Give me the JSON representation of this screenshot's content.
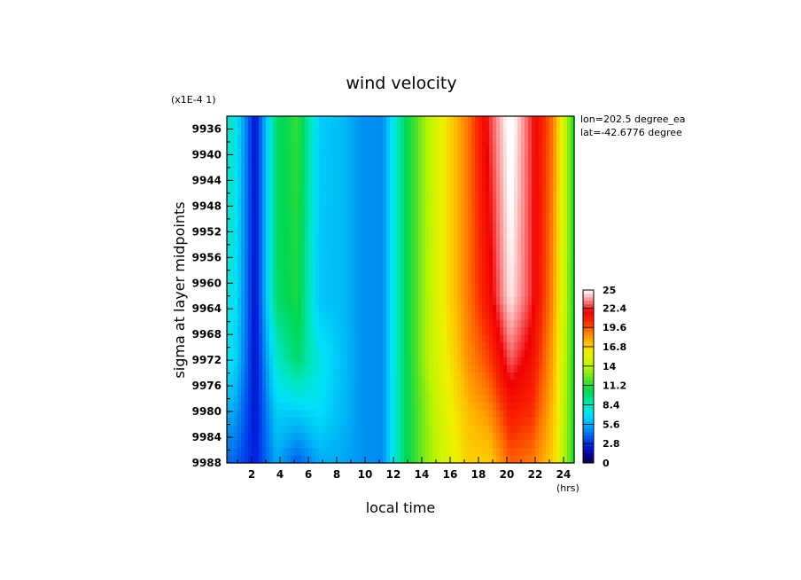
{
  "chart_data": {
    "type": "heatmap",
    "title": "wind velocity",
    "xlabel": "local time",
    "ylabel": "sigma at layer midpoints",
    "x_unit": "(hrs)",
    "y_scale_label": "(x1E-4 1)",
    "annotations": [
      "lon=202.5 degree_ea",
      "lat=-42.6776 degree"
    ],
    "xlim": [
      0.25,
      24.75
    ],
    "ylim": [
      9988,
      9934
    ],
    "x_ticks": [
      2,
      4,
      6,
      8,
      10,
      12,
      14,
      16,
      18,
      20,
      22,
      24
    ],
    "x_tick_labels": [
      "2",
      "4",
      "6",
      "8",
      "10",
      "12",
      "14",
      "16",
      "18",
      "20",
      "22",
      "24"
    ],
    "y_ticks": [
      9936,
      9940,
      9944,
      9948,
      9952,
      9956,
      9960,
      9964,
      9968,
      9972,
      9976,
      9980,
      9984,
      9988
    ],
    "y_tick_labels": [
      "9936",
      "9940",
      "9944",
      "9948",
      "9952",
      "9956",
      "9960",
      "9964",
      "9968",
      "9972",
      "9976",
      "9980",
      "9984",
      "9988"
    ],
    "x": [
      0.75,
      2.25,
      3.75,
      5.25,
      6.75,
      8.25,
      9.75,
      11.25,
      12.75,
      14.25,
      15.75,
      17.25,
      18.75,
      20.25,
      21.75,
      23.25,
      24.75
    ],
    "y": [
      9934,
      9962,
      9972,
      9980,
      9988
    ],
    "z": [
      [
        8.0,
        2.0,
        10.0,
        11.5,
        6.5,
        6.0,
        5.0,
        4.8,
        10.0,
        13.5,
        16.5,
        19.0,
        22.5,
        25.5,
        22.5,
        19.0,
        11.0
      ],
      [
        7.5,
        2.0,
        10.0,
        11.0,
        6.2,
        6.0,
        5.0,
        4.8,
        10.0,
        13.5,
        16.5,
        19.0,
        21.5,
        24.8,
        22.5,
        18.5,
        11.0
      ],
      [
        7.0,
        2.0,
        8.0,
        10.0,
        7.5,
        6.2,
        5.0,
        4.8,
        10.0,
        13.5,
        16.0,
        18.5,
        20.0,
        23.0,
        21.5,
        18.0,
        11.0
      ],
      [
        5.5,
        2.2,
        6.5,
        6.5,
        7.0,
        6.0,
        5.0,
        4.8,
        10.0,
        13.0,
        15.5,
        17.5,
        18.5,
        21.0,
        20.5,
        17.5,
        11.0
      ],
      [
        4.0,
        2.5,
        5.5,
        3.8,
        5.5,
        5.5,
        5.0,
        4.8,
        10.0,
        13.0,
        15.0,
        17.0,
        17.0,
        19.5,
        19.0,
        17.0,
        11.0
      ]
    ],
    "colorbar": {
      "min": 0,
      "max": 25,
      "tick_values": [
        0,
        2.8,
        5.6,
        8.4,
        11.2,
        14,
        16.8,
        19.6,
        22.4,
        25
      ],
      "tick_labels": [
        "0",
        "2.8",
        "5.6",
        "8.4",
        "11.2",
        "14",
        "16.8",
        "19.6",
        "22.4",
        "25"
      ]
    },
    "grid": false,
    "legend": "colorbar-right"
  }
}
